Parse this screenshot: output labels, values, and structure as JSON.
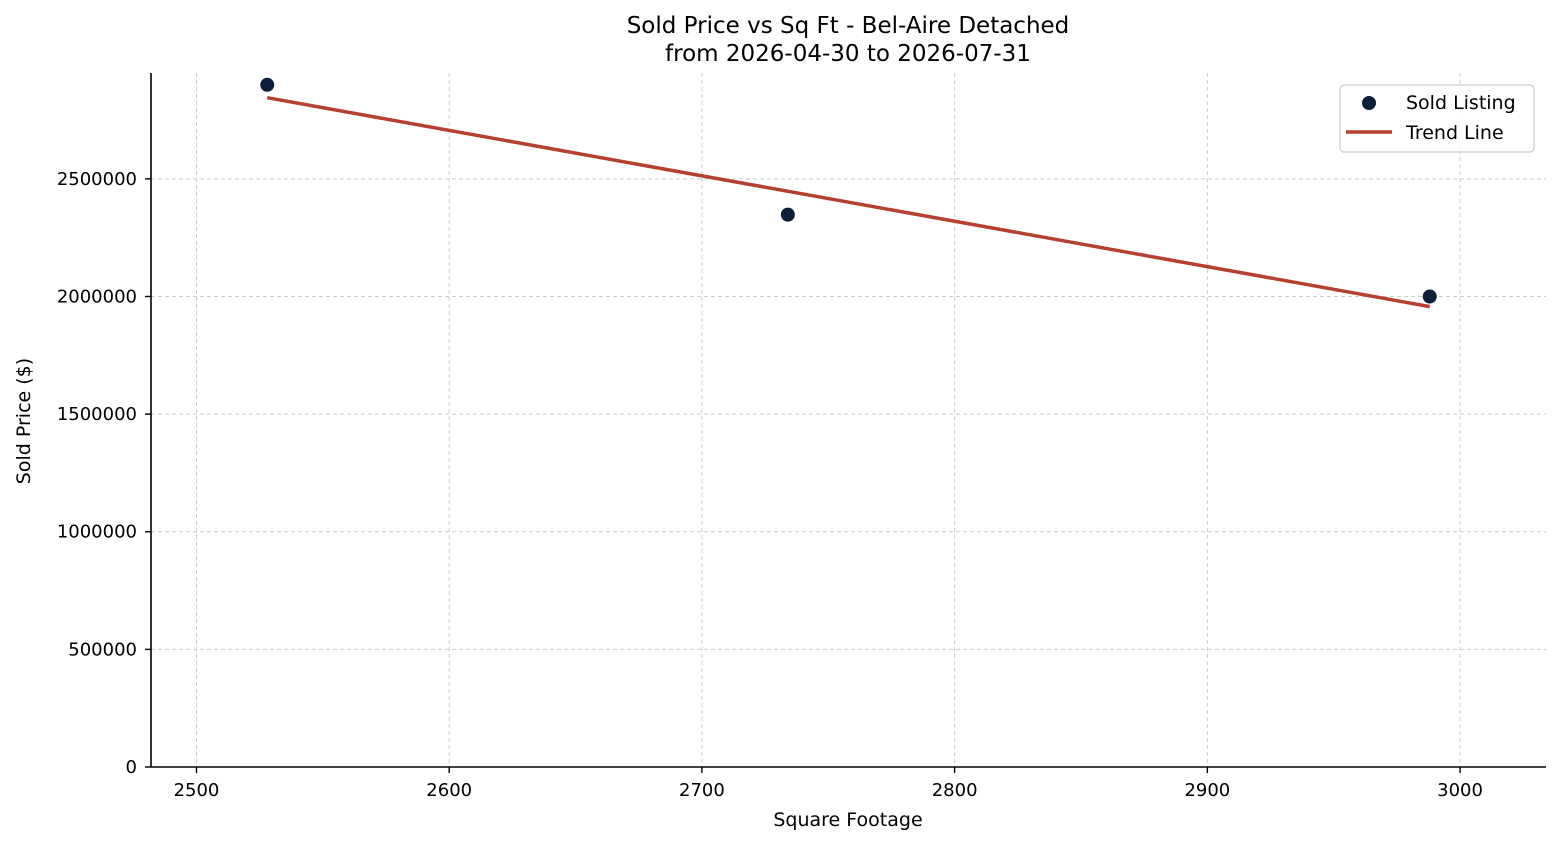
{
  "chart_data": {
    "type": "scatter",
    "title": "Sold Price vs Sq Ft - Bel-Aire Detached",
    "subtitle": "from 2026-04-30 to 2026-07-31",
    "xlabel": "Square Footage",
    "ylabel": "Sold Price ($)",
    "xlim": [
      2482,
      3034
    ],
    "ylim": [
      0,
      2950000
    ],
    "x_ticks": [
      2500,
      2600,
      2700,
      2800,
      2900,
      3000
    ],
    "x_tick_labels": [
      "2500",
      "2600",
      "2700",
      "2800",
      "2900",
      "3000"
    ],
    "y_ticks": [
      0,
      500000,
      1000000,
      1500000,
      2000000,
      2500000
    ],
    "y_tick_labels": [
      "0",
      "500000",
      "1000000",
      "1500000",
      "2000000",
      "2500000"
    ],
    "grid": true,
    "legend_position": "top-right",
    "series": [
      {
        "name": "Sold Listing",
        "kind": "scatter",
        "color": "#0b1f3a",
        "points": [
          {
            "x": 2528,
            "y": 2900000
          },
          {
            "x": 2734,
            "y": 2348000
          },
          {
            "x": 2988,
            "y": 2000000
          }
        ]
      },
      {
        "name": "Trend Line",
        "kind": "line",
        "color": "#b5402f",
        "points": [
          {
            "x": 2528,
            "y": 2845000
          },
          {
            "x": 2988,
            "y": 1957000
          }
        ]
      }
    ]
  }
}
